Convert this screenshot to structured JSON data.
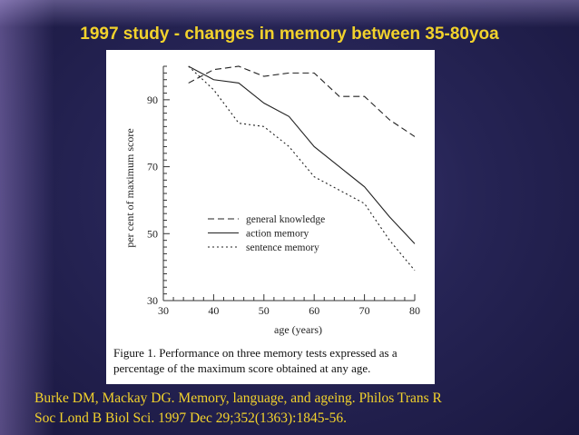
{
  "slide": {
    "title": "1997 study - changes in memory between 35-80yoa",
    "citation_line1": "Burke DM, Mackay DG.  Memory, language, and ageing.  Philos Trans R",
    "citation_line2": "Soc Lond B Biol Sci. 1997 Dec 29;352(1363):1845-56."
  },
  "colors": {
    "title": "#f2d22c",
    "background": "#262455",
    "series": "#222222"
  },
  "chart_data": {
    "type": "line",
    "title": "",
    "xlabel": "age (years)",
    "ylabel": "per cent of maximum score",
    "xlim": [
      30,
      80
    ],
    "ylim": [
      30,
      100
    ],
    "x_ticks": [
      "30",
      "40",
      "50",
      "60",
      "70",
      "80"
    ],
    "y_ticks": [
      "30",
      "50",
      "70",
      "90"
    ],
    "grid": false,
    "legend_position": "center-right",
    "series": [
      {
        "name": "general knowledge",
        "style": "dashed",
        "x": [
          35,
          40,
          45,
          50,
          55,
          60,
          65,
          70,
          75,
          80
        ],
        "y": [
          95,
          99,
          100,
          97,
          98,
          98,
          91,
          91,
          84,
          79
        ]
      },
      {
        "name": "action memory",
        "style": "solid",
        "x": [
          35,
          40,
          45,
          50,
          55,
          60,
          65,
          70,
          75,
          80
        ],
        "y": [
          100,
          96,
          95,
          89,
          85,
          76,
          70,
          64,
          55,
          47
        ]
      },
      {
        "name": "sentence memory",
        "style": "dotted",
        "x": [
          35,
          40,
          45,
          50,
          55,
          60,
          65,
          70,
          75,
          80
        ],
        "y": [
          100,
          93,
          83,
          82,
          76,
          67,
          63,
          59,
          48,
          39
        ]
      }
    ],
    "caption_line1": "Figure 1.  Performance on three memory tests expressed as a",
    "caption_line2": "percentage of the maximum score obtained at any age."
  }
}
